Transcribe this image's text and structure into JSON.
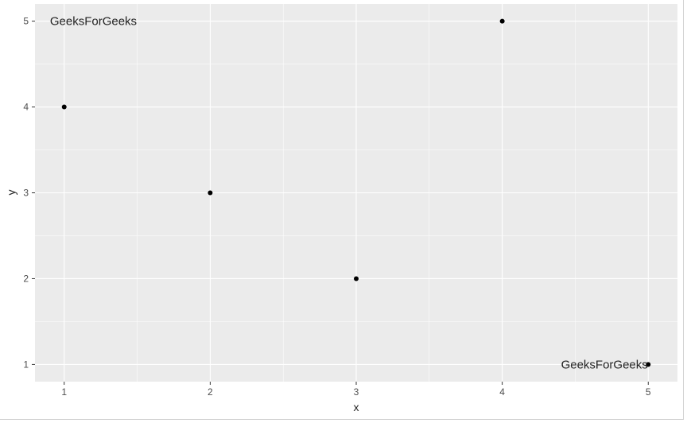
{
  "chart_data": {
    "type": "scatter",
    "title": "",
    "xlabel": "x",
    "ylabel": "y",
    "xlim": [
      0.8,
      5.2
    ],
    "ylim": [
      0.8,
      5.2
    ],
    "x_ticks": [
      "1",
      "2",
      "3",
      "4",
      "5"
    ],
    "y_ticks": [
      "1",
      "2",
      "3",
      "4",
      "5"
    ],
    "grid": true,
    "points": [
      {
        "x": 1,
        "y": 4
      },
      {
        "x": 2,
        "y": 3
      },
      {
        "x": 3,
        "y": 2
      },
      {
        "x": 4,
        "y": 5
      },
      {
        "x": 5,
        "y": 1
      }
    ],
    "annotations": [
      {
        "text": "GeeksForGeeks",
        "x": 1.2,
        "y": 5
      },
      {
        "text": "GeeksForGeeks",
        "x": 4.7,
        "y": 1
      }
    ],
    "colors": {
      "panel": "#ebebeb",
      "grid": "#ffffff",
      "point": "#000000"
    }
  }
}
